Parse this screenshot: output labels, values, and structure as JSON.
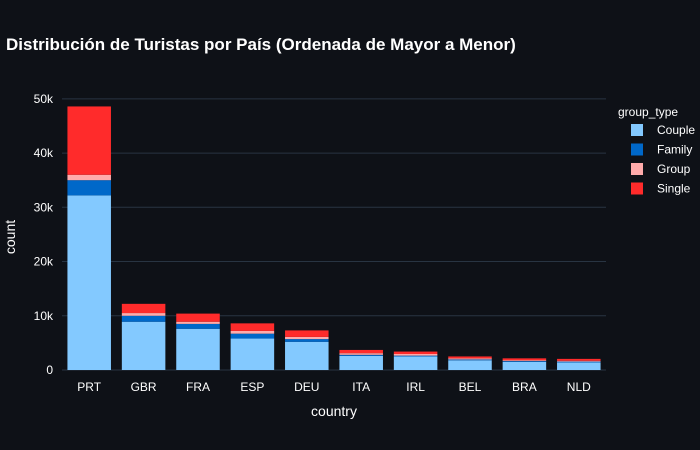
{
  "chart_data": {
    "type": "bar",
    "stacked": true,
    "title": "Distribución de Turistas por País (Ordenada de Mayor a Menor)",
    "xlabel": "country",
    "ylabel": "count",
    "ylim": [
      0,
      52000
    ],
    "yticks": [
      0,
      10000,
      20000,
      30000,
      40000,
      50000
    ],
    "ytick_labels": [
      "0",
      "10k",
      "20k",
      "30k",
      "40k",
      "50k"
    ],
    "legend_title": "group_type",
    "legend_position": "top-right",
    "grid": true,
    "background": "#0e1117",
    "gridline_color": "#283442",
    "categories": [
      "PRT",
      "GBR",
      "FRA",
      "ESP",
      "DEU",
      "ITA",
      "IRL",
      "BEL",
      "BRA",
      "NLD"
    ],
    "series": [
      {
        "name": "Couple",
        "color": "#83c9ff",
        "values": [
          32200,
          8900,
          7600,
          5800,
          5200,
          2600,
          2500,
          1800,
          1500,
          1400
        ]
      },
      {
        "name": "Family",
        "color": "#0068c9",
        "values": [
          2800,
          1100,
          900,
          900,
          500,
          200,
          150,
          150,
          150,
          150
        ]
      },
      {
        "name": "Group",
        "color": "#ffabab",
        "values": [
          1000,
          500,
          400,
          500,
          400,
          300,
          300,
          200,
          150,
          150
        ]
      },
      {
        "name": "Single",
        "color": "#ff2b2b",
        "values": [
          12600,
          1700,
          1500,
          1400,
          1200,
          600,
          450,
          350,
          350,
          350
        ]
      }
    ]
  }
}
